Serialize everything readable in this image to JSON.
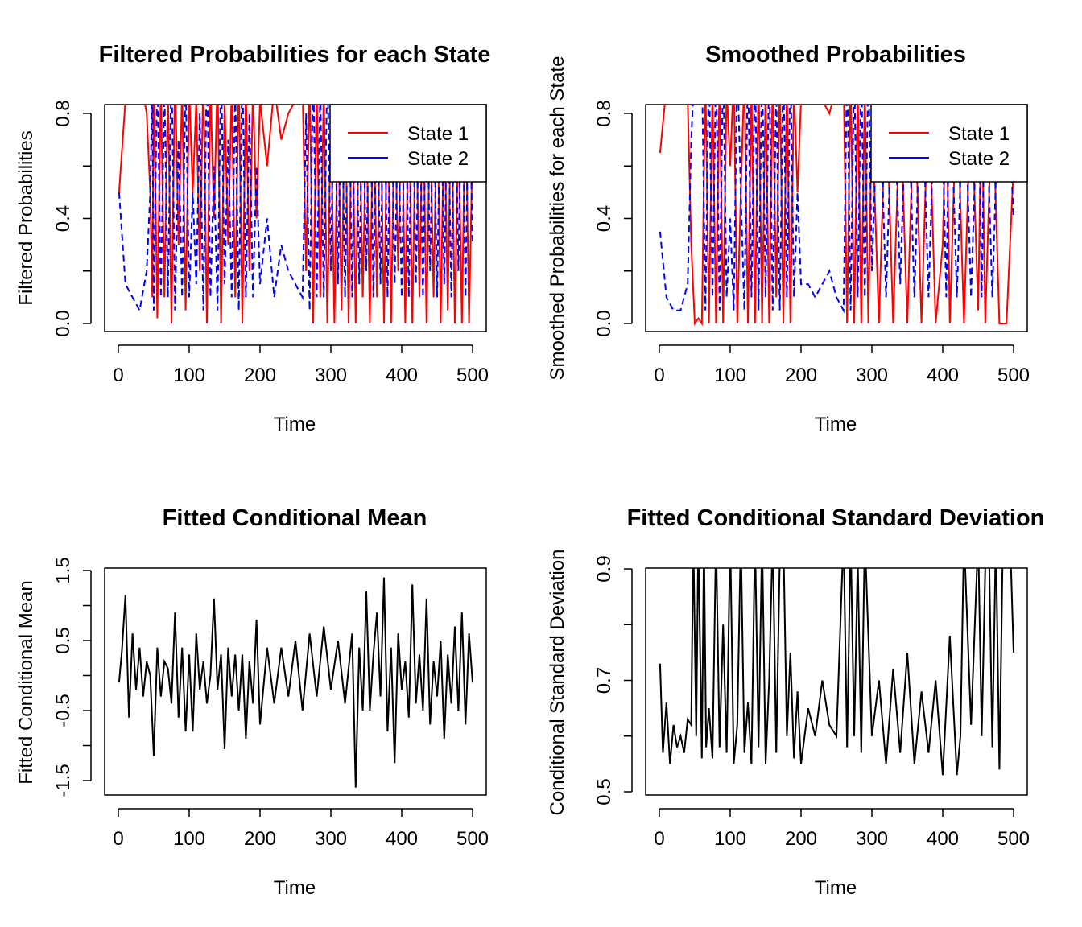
{
  "chart_data": [
    {
      "type": "line",
      "title": "Filtered Probabilities for each State",
      "xlabel": "Time",
      "ylabel": "Filtered Probabilities",
      "xlim": [
        0,
        500
      ],
      "ylim": [
        0,
        1
      ],
      "x_ticks": [
        "0",
        "100",
        "200",
        "300",
        "400",
        "500"
      ],
      "y_ticks": [
        "0.0",
        "0.4",
        "0.8"
      ],
      "legend": {
        "position": "top-right",
        "entries": [
          "State 1",
          "State 2"
        ]
      },
      "x": [
        1,
        10,
        20,
        30,
        40,
        45,
        48,
        50,
        55,
        60,
        65,
        70,
        75,
        80,
        85,
        90,
        95,
        100,
        105,
        110,
        115,
        120,
        125,
        130,
        135,
        140,
        145,
        150,
        155,
        160,
        165,
        170,
        175,
        180,
        185,
        190,
        195,
        200,
        210,
        220,
        230,
        240,
        250,
        260,
        265,
        270,
        275,
        280,
        285,
        290,
        295,
        300,
        305,
        310,
        315,
        320,
        325,
        330,
        335,
        340,
        345,
        350,
        355,
        360,
        365,
        370,
        375,
        380,
        385,
        390,
        395,
        400,
        405,
        410,
        415,
        420,
        425,
        430,
        435,
        440,
        445,
        450,
        455,
        460,
        465,
        470,
        475,
        480,
        485,
        490,
        495,
        500
      ],
      "series": [
        {
          "name": "State 1",
          "color": "#ff0000",
          "dash": "solid",
          "values": [
            0.5,
            0.85,
            0.9,
            0.95,
            0.8,
            0.5,
            0.1,
            0.95,
            0.02,
            0.9,
            0.1,
            0.9,
            0.0,
            0.95,
            0.3,
            0.9,
            0.05,
            0.9,
            0.5,
            0.85,
            0.2,
            0.95,
            0.0,
            0.9,
            0.4,
            0.95,
            0.0,
            0.85,
            0.3,
            0.9,
            0.1,
            0.95,
            0.0,
            0.9,
            0.2,
            0.9,
            0.4,
            0.85,
            0.6,
            0.9,
            0.7,
            0.8,
            0.85,
            0.9,
            0.2,
            0.95,
            0.0,
            0.9,
            0.1,
            0.9,
            0.0,
            0.8,
            0.0,
            0.85,
            0.05,
            0.9,
            0.0,
            0.9,
            0.0,
            0.85,
            0.1,
            0.8,
            0.0,
            0.9,
            0.1,
            0.85,
            0.0,
            0.9,
            0.0,
            0.85,
            0.2,
            0.9,
            0.0,
            0.9,
            0.0,
            0.85,
            0.1,
            0.9,
            0.0,
            0.8,
            0.1,
            0.9,
            0.0,
            0.85,
            0.05,
            0.9,
            0.0,
            0.8,
            0.0,
            0.9,
            0.0,
            0.7
          ]
        },
        {
          "name": "State 2",
          "color": "#0000ff",
          "dash": "dashed",
          "values": [
            0.5,
            0.15,
            0.1,
            0.05,
            0.2,
            0.5,
            0.9,
            0.05,
            0.98,
            0.1,
            0.9,
            0.1,
            1.0,
            0.05,
            0.7,
            0.1,
            0.95,
            0.1,
            0.5,
            0.15,
            0.8,
            0.05,
            1.0,
            0.1,
            0.6,
            0.05,
            1.0,
            0.15,
            0.7,
            0.1,
            0.9,
            0.05,
            1.0,
            0.1,
            0.8,
            0.1,
            0.6,
            0.15,
            0.4,
            0.1,
            0.3,
            0.2,
            0.15,
            0.1,
            0.8,
            0.05,
            1.0,
            0.1,
            0.9,
            0.1,
            1.0,
            0.2,
            1.0,
            0.15,
            0.95,
            0.1,
            1.0,
            0.1,
            1.0,
            0.15,
            0.9,
            0.2,
            1.0,
            0.1,
            0.9,
            0.15,
            1.0,
            0.1,
            1.0,
            0.15,
            0.8,
            0.1,
            1.0,
            0.1,
            1.0,
            0.15,
            0.9,
            0.1,
            1.0,
            0.2,
            0.9,
            0.1,
            1.0,
            0.15,
            0.95,
            0.1,
            1.0,
            0.2,
            1.0,
            0.1,
            1.0,
            0.3
          ]
        }
      ]
    },
    {
      "type": "line",
      "title": "Smoothed Probabilities",
      "xlabel": "Time",
      "ylabel": "Smoothed Probabilities for each State",
      "xlim": [
        0,
        500
      ],
      "ylim": [
        0,
        1
      ],
      "x_ticks": [
        "0",
        "100",
        "200",
        "300",
        "400",
        "500"
      ],
      "y_ticks": [
        "0.0",
        "0.4",
        "0.8"
      ],
      "legend": {
        "position": "top-right",
        "entries": [
          "State 1",
          "State 2"
        ]
      },
      "x": [
        1,
        10,
        20,
        30,
        40,
        45,
        50,
        55,
        60,
        65,
        70,
        75,
        80,
        85,
        90,
        95,
        100,
        105,
        110,
        115,
        120,
        125,
        130,
        135,
        140,
        145,
        150,
        155,
        160,
        165,
        170,
        175,
        180,
        185,
        190,
        195,
        200,
        210,
        220,
        230,
        240,
        250,
        260,
        265,
        270,
        275,
        280,
        285,
        290,
        295,
        300,
        310,
        320,
        330,
        340,
        350,
        360,
        370,
        380,
        390,
        400,
        405,
        410,
        420,
        430,
        440,
        450,
        455,
        460,
        470,
        480,
        490,
        500
      ],
      "series": [
        {
          "name": "State 1",
          "color": "#ff0000",
          "dash": "solid",
          "values": [
            0.65,
            0.9,
            0.95,
            0.95,
            0.85,
            0.3,
            0.0,
            0.02,
            0.0,
            0.95,
            0.0,
            0.9,
            0.0,
            0.95,
            0.0,
            0.9,
            0.6,
            0.95,
            0.0,
            0.5,
            0.95,
            0.0,
            0.9,
            0.0,
            0.95,
            0.0,
            0.9,
            0.0,
            0.95,
            0.1,
            0.95,
            0.0,
            0.9,
            0.0,
            0.9,
            0.5,
            0.85,
            0.85,
            0.9,
            0.85,
            0.8,
            0.9,
            0.95,
            0.0,
            0.95,
            0.0,
            0.9,
            0.0,
            0.9,
            0.0,
            0.8,
            0.0,
            0.9,
            0.0,
            0.85,
            0.0,
            0.9,
            0.0,
            0.9,
            0.0,
            0.3,
            0.9,
            0.0,
            0.9,
            0.0,
            0.9,
            0.05,
            0.9,
            0.0,
            0.9,
            0.0,
            0.0,
            0.6
          ]
        },
        {
          "name": "State 2",
          "color": "#0000ff",
          "dash": "dashed",
          "values": [
            0.35,
            0.1,
            0.05,
            0.05,
            0.15,
            0.7,
            1.0,
            0.98,
            1.0,
            0.05,
            1.0,
            0.1,
            1.0,
            0.05,
            1.0,
            0.1,
            0.4,
            0.05,
            1.0,
            0.5,
            0.05,
            1.0,
            0.1,
            1.0,
            0.05,
            1.0,
            0.1,
            1.0,
            0.05,
            0.9,
            0.05,
            1.0,
            0.1,
            1.0,
            0.1,
            0.5,
            0.15,
            0.15,
            0.1,
            0.15,
            0.2,
            0.1,
            0.05,
            1.0,
            0.05,
            1.0,
            0.1,
            1.0,
            0.1,
            1.0,
            0.2,
            1.0,
            0.1,
            1.0,
            0.15,
            1.0,
            0.1,
            1.0,
            0.1,
            1.0,
            0.7,
            0.1,
            1.0,
            0.1,
            1.0,
            0.1,
            0.95,
            0.1,
            1.0,
            0.1,
            1.0,
            1.0,
            0.4
          ]
        }
      ]
    },
    {
      "type": "line",
      "title": "Fitted Conditional Mean",
      "xlabel": "Time",
      "ylabel": "Fitted Conditional Mean",
      "xlim": [
        0,
        500
      ],
      "ylim": [
        -1.7,
        1.5
      ],
      "x_ticks": [
        "0",
        "100",
        "200",
        "300",
        "400",
        "500"
      ],
      "y_ticks": [
        "-1.5",
        "-0.5",
        "0.5",
        "1.5"
      ],
      "x": [
        1,
        5,
        10,
        15,
        20,
        25,
        30,
        35,
        40,
        45,
        50,
        55,
        60,
        65,
        70,
        75,
        80,
        85,
        90,
        95,
        100,
        105,
        110,
        115,
        120,
        125,
        130,
        135,
        140,
        145,
        150,
        155,
        160,
        165,
        170,
        175,
        180,
        185,
        190,
        195,
        200,
        210,
        220,
        230,
        240,
        250,
        260,
        270,
        280,
        290,
        300,
        310,
        320,
        330,
        335,
        340,
        345,
        350,
        355,
        360,
        365,
        370,
        375,
        380,
        385,
        390,
        395,
        400,
        405,
        410,
        415,
        420,
        425,
        430,
        435,
        440,
        445,
        450,
        455,
        460,
        465,
        470,
        475,
        480,
        485,
        490,
        495,
        500
      ],
      "series": [
        {
          "name": "",
          "color": "#000000",
          "dash": "solid",
          "values": [
            -0.1,
            0.35,
            1.15,
            -0.6,
            0.6,
            -0.2,
            0.4,
            -0.3,
            0.2,
            0.0,
            -1.15,
            0.4,
            -0.3,
            0.2,
            0.1,
            -0.4,
            0.9,
            -0.6,
            0.4,
            -0.8,
            0.3,
            -0.8,
            0.6,
            -0.2,
            0.2,
            -0.4,
            0.0,
            1.1,
            -0.2,
            0.3,
            -1.05,
            0.4,
            -0.3,
            0.3,
            -0.5,
            0.3,
            -0.9,
            0.2,
            -0.4,
            0.8,
            -0.7,
            0.4,
            -0.4,
            0.4,
            -0.3,
            0.5,
            -0.5,
            0.6,
            -0.3,
            0.7,
            -0.2,
            0.5,
            -0.4,
            0.6,
            -1.6,
            0.4,
            -0.5,
            1.2,
            -0.5,
            0.3,
            0.9,
            -0.3,
            1.4,
            -0.8,
            0.4,
            -1.25,
            0.6,
            -0.2,
            0.2,
            -0.6,
            1.3,
            -0.4,
            0.3,
            -0.5,
            1.1,
            -0.7,
            0.2,
            -0.3,
            0.5,
            -0.9,
            0.3,
            -0.4,
            0.7,
            -0.5,
            0.9,
            -0.7,
            0.6,
            -0.1
          ]
        }
      ]
    },
    {
      "type": "line",
      "title": "Fitted Conditional Standard Deviation",
      "xlabel": "Time",
      "ylabel": "Conditional Standard Deviation",
      "xlim": [
        0,
        500
      ],
      "ylim": [
        0.5,
        0.97
      ],
      "x_ticks": [
        "0",
        "100",
        "200",
        "300",
        "400",
        "500"
      ],
      "y_ticks": [
        "0.5",
        "0.7",
        "0.9"
      ],
      "x": [
        1,
        5,
        10,
        15,
        20,
        25,
        30,
        35,
        40,
        45,
        48,
        52,
        55,
        60,
        63,
        66,
        70,
        75,
        80,
        85,
        90,
        95,
        100,
        105,
        110,
        115,
        120,
        125,
        130,
        135,
        140,
        145,
        150,
        155,
        160,
        165,
        170,
        175,
        180,
        185,
        190,
        195,
        200,
        210,
        220,
        230,
        240,
        250,
        260,
        265,
        270,
        275,
        280,
        285,
        290,
        300,
        310,
        320,
        330,
        340,
        350,
        360,
        370,
        380,
        390,
        400,
        410,
        420,
        425,
        430,
        440,
        450,
        455,
        460,
        465,
        470,
        475,
        480,
        485,
        490,
        495,
        500
      ],
      "series": [
        {
          "name": "",
          "color": "#000000",
          "dash": "solid",
          "values": [
            0.73,
            0.57,
            0.66,
            0.55,
            0.62,
            0.58,
            0.6,
            0.57,
            0.63,
            0.62,
            0.96,
            0.6,
            0.96,
            0.56,
            0.96,
            0.58,
            0.65,
            0.56,
            0.96,
            0.58,
            0.8,
            0.57,
            0.96,
            0.55,
            0.62,
            0.96,
            0.57,
            0.66,
            0.55,
            0.96,
            0.58,
            0.96,
            0.55,
            0.7,
            0.96,
            0.57,
            0.92,
            0.96,
            0.6,
            0.75,
            0.56,
            0.68,
            0.55,
            0.65,
            0.6,
            0.7,
            0.62,
            0.6,
            0.96,
            0.58,
            0.96,
            0.6,
            0.92,
            0.57,
            0.96,
            0.6,
            0.7,
            0.55,
            0.72,
            0.57,
            0.75,
            0.55,
            0.68,
            0.57,
            0.7,
            0.53,
            0.78,
            0.53,
            0.6,
            0.96,
            0.62,
            0.96,
            0.6,
            0.9,
            0.96,
            0.58,
            0.96,
            0.54,
            0.96,
            0.96,
            0.96,
            0.75
          ]
        }
      ]
    }
  ]
}
